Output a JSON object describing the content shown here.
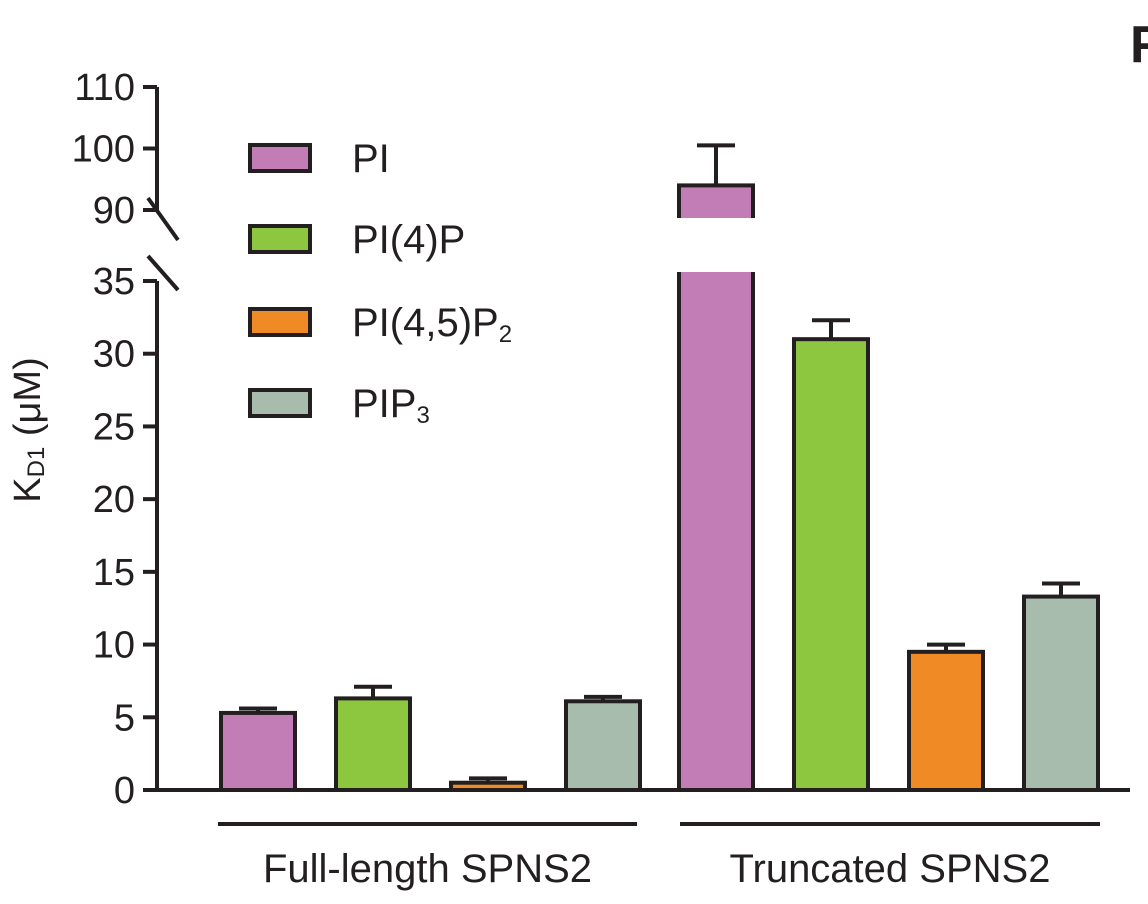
{
  "panel_letter": "F",
  "chart_data": {
    "type": "bar",
    "ylabel": "KD1 (μM)",
    "ylabel_main": "K",
    "ylabel_sub": "D1",
    "ylabel_unit": " (μM)",
    "y_axis_break": {
      "lower_segment": [
        0,
        35
      ],
      "upper_segment": [
        90,
        110
      ]
    },
    "yticks_lower": [
      0,
      5,
      10,
      15,
      20,
      25,
      30,
      35
    ],
    "yticks_upper": [
      90,
      100,
      110
    ],
    "groups": [
      "Full-length SPNS2",
      "Truncated SPNS2"
    ],
    "series": [
      {
        "name": "PI",
        "label_main": "PI",
        "label_sub": "",
        "color": "#c27cb6",
        "values": [
          5.3,
          94.0
        ],
        "errors": [
          0.3,
          6.5
        ]
      },
      {
        "name": "PI(4)P",
        "label_main": "PI(4)P",
        "label_sub": "",
        "color": "#8dc63f",
        "values": [
          6.3,
          31.0
        ],
        "errors": [
          0.8,
          1.3
        ]
      },
      {
        "name": "PI(4,5)P2",
        "label_main": "PI(4,5)P",
        "label_sub": "2",
        "color": "#f08a24",
        "values": [
          0.5,
          9.5
        ],
        "errors": [
          0.3,
          0.5
        ]
      },
      {
        "name": "PIP3",
        "label_main": "PIP",
        "label_sub": "3",
        "color": "#a8bcae",
        "values": [
          6.1,
          13.3
        ],
        "errors": [
          0.3,
          0.9
        ]
      }
    ],
    "legend_position": "top-left",
    "grid": false
  }
}
